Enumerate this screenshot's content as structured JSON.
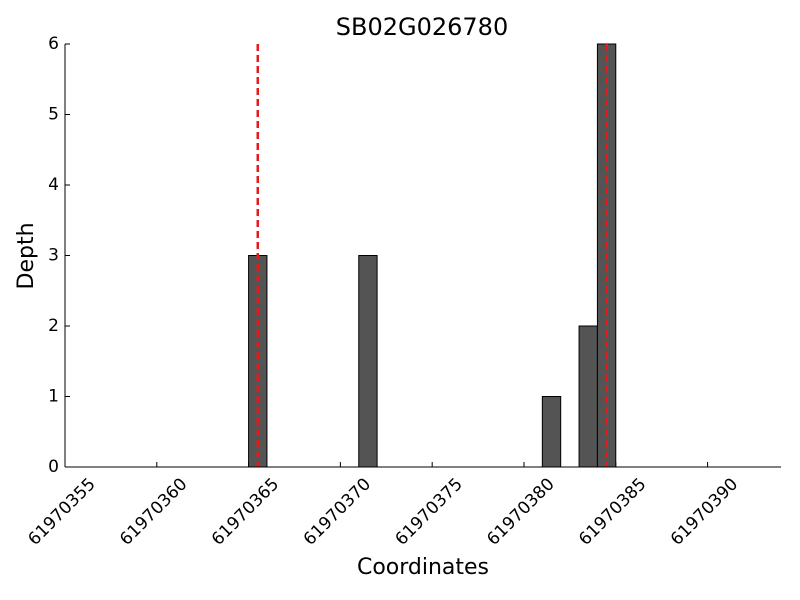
{
  "chart_data": {
    "type": "bar",
    "title": "SB02G026780",
    "x_label": "Coordinates",
    "y_label": "Depth",
    "x": [
      61970365,
      61970371,
      61970381,
      61970383,
      61970384
    ],
    "values": [
      3,
      3,
      1,
      2,
      6
    ],
    "bar_width": 1,
    "color": "#545454",
    "vlines": [
      61970365.5,
      61970384.5
    ],
    "vline_color": "#e41a1c",
    "vline_style": "dashed",
    "xlim": [
      61970355,
      61970394
    ],
    "ylim": [
      0,
      6
    ],
    "xticks": [
      61970355,
      61970360,
      61970365,
      61970370,
      61970375,
      61970380,
      61970385,
      61970390
    ],
    "yticks": [
      0,
      1,
      2,
      3,
      4,
      5,
      6
    ],
    "grid": false
  }
}
